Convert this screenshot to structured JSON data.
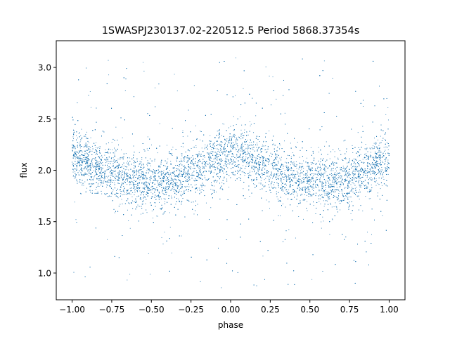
{
  "chart_data": {
    "type": "scatter",
    "title": "1SWASPJ230137.02-220512.5 Period 5868.37354s",
    "xlabel": "phase",
    "ylabel": "flux",
    "xlim": [
      -1.1,
      1.1
    ],
    "ylim": [
      0.74,
      3.26
    ],
    "x_ticks": [
      -1.0,
      -0.75,
      -0.5,
      -0.25,
      0.0,
      0.25,
      0.5,
      0.75,
      1.0
    ],
    "x_tick_labels": [
      "−1.00",
      "−0.75",
      "−0.50",
      "−0.25",
      "0.00",
      "0.25",
      "0.50",
      "0.75",
      "1.00"
    ],
    "y_ticks": [
      1.0,
      1.5,
      2.0,
      2.5,
      3.0
    ],
    "y_tick_labels": [
      "1.0",
      "1.5",
      "2.0",
      "2.5",
      "3.0"
    ],
    "grid": false,
    "legend": "none",
    "series": [
      {
        "color": "#1f77b4",
        "marker": "point",
        "phase_range": [
          -1.0,
          1.0
        ],
        "flux_range": [
          0.85,
          3.12
        ],
        "trend": [
          {
            "x": -1.0,
            "y": 2.13
          },
          {
            "x": -0.9,
            "y": 2.08
          },
          {
            "x": -0.8,
            "y": 2.01
          },
          {
            "x": -0.7,
            "y": 1.95
          },
          {
            "x": -0.6,
            "y": 1.9
          },
          {
            "x": -0.5,
            "y": 1.87
          },
          {
            "x": -0.4,
            "y": 1.89
          },
          {
            "x": -0.3,
            "y": 1.94
          },
          {
            "x": -0.2,
            "y": 2.01
          },
          {
            "x": -0.1,
            "y": 2.1
          },
          {
            "x": 0.0,
            "y": 2.16
          },
          {
            "x": 0.1,
            "y": 2.13
          },
          {
            "x": 0.2,
            "y": 2.07
          },
          {
            "x": 0.3,
            "y": 2.0
          },
          {
            "x": 0.4,
            "y": 1.94
          },
          {
            "x": 0.5,
            "y": 1.89
          },
          {
            "x": 0.6,
            "y": 1.86
          },
          {
            "x": 0.7,
            "y": 1.88
          },
          {
            "x": 0.8,
            "y": 1.95
          },
          {
            "x": 0.9,
            "y": 2.04
          },
          {
            "x": 1.0,
            "y": 2.13
          }
        ]
      }
    ]
  }
}
